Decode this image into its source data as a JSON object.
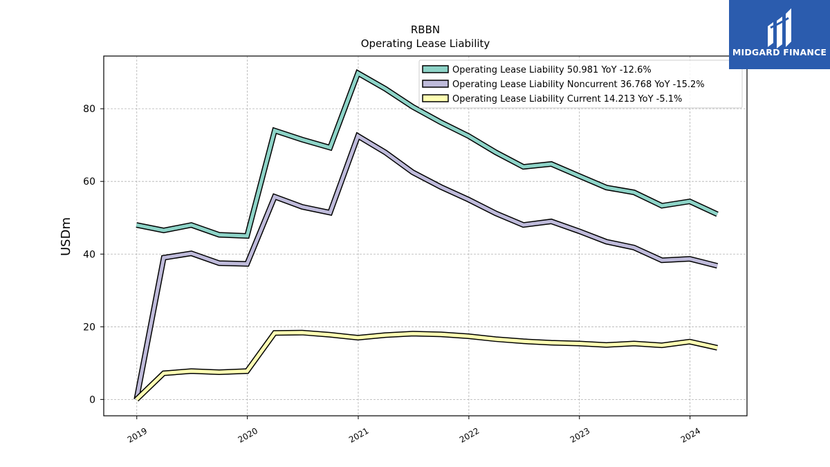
{
  "chart_data": {
    "type": "line",
    "title": "RBBN",
    "subtitle": "Operating Lease Liability",
    "xlabel": "",
    "ylabel": "USDm",
    "xlim": [
      "2018-09-14",
      "2024-07-07"
    ],
    "ylim": [
      -4.5,
      94.5
    ],
    "x_ticks": [
      "2019",
      "2020",
      "2021",
      "2022",
      "2023",
      "2024"
    ],
    "y_ticks": [
      0,
      20,
      40,
      60,
      80
    ],
    "grid": true,
    "legend_position": "top-right",
    "x": [
      "2018-12-31",
      "2019-03-31",
      "2019-06-30",
      "2019-09-30",
      "2019-12-31",
      "2020-03-31",
      "2020-06-30",
      "2020-09-30",
      "2020-12-31",
      "2021-03-31",
      "2021-06-30",
      "2021-09-30",
      "2021-12-31",
      "2022-03-31",
      "2022-06-30",
      "2022-09-30",
      "2022-12-31",
      "2023-03-31",
      "2023-06-30",
      "2023-09-30",
      "2023-12-31",
      "2024-03-31"
    ],
    "series": [
      {
        "name": "Operating Lease Liability",
        "legend": "Operating Lease Liability  50.981 YoY -12.6%",
        "color": "#8dd3c7",
        "values": [
          48.0,
          46.5,
          48.0,
          45.3,
          45.0,
          74.0,
          71.5,
          69.3,
          89.8,
          85.5,
          80.5,
          76.3,
          72.5,
          68.0,
          64.0,
          64.8,
          61.5,
          58.3,
          57.0,
          53.3,
          54.5,
          50.981
        ]
      },
      {
        "name": "Operating Lease Liability Noncurrent",
        "legend": "Operating Lease Liability Noncurrent  36.768 YoY -15.2%",
        "color": "#bebada",
        "values": [
          0.0,
          39.0,
          40.2,
          37.5,
          37.3,
          55.8,
          53.0,
          51.4,
          72.5,
          68.0,
          62.5,
          58.5,
          55.0,
          51.2,
          48.0,
          49.0,
          46.3,
          43.4,
          41.8,
          38.3,
          38.7,
          36.768
        ]
      },
      {
        "name": "Operating Lease Liability Current",
        "legend": "Operating Lease Liability Current  14.213 YoY -5.1%",
        "color": "#ffffb3",
        "values": [
          0.0,
          7.2,
          7.8,
          7.5,
          7.8,
          18.3,
          18.4,
          17.8,
          17.0,
          17.7,
          18.1,
          17.9,
          17.4,
          16.6,
          16.0,
          15.6,
          15.4,
          15.0,
          15.4,
          14.9,
          15.9,
          14.213
        ]
      }
    ]
  },
  "branding": {
    "logo_text": "MIDGARD FINANCE",
    "logo_color": "#2b5cae"
  }
}
